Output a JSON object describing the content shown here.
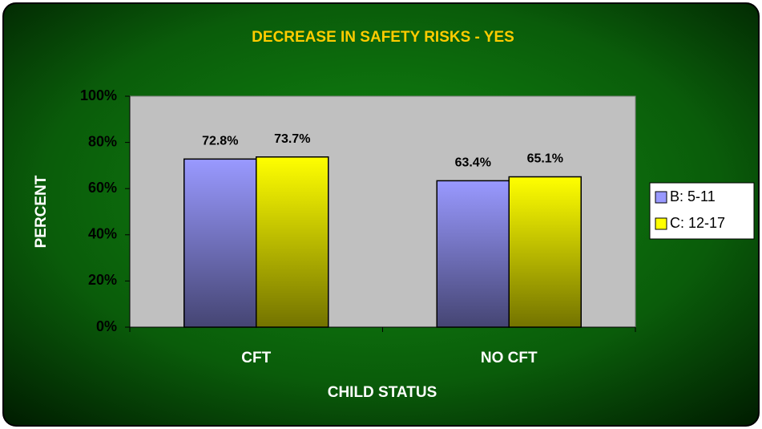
{
  "chart_data": {
    "type": "bar",
    "title": "DECREASE IN SAFETY RISKS - YES",
    "x_label": "CHILD STATUS",
    "y_label": "PERCENT",
    "categories": [
      "CFT",
      "NO CFT"
    ],
    "series": [
      {
        "name": "B: 5-11",
        "color": "#9999ff",
        "values": [
          72.8,
          63.4
        ],
        "value_labels": [
          "72.8%",
          "63.4%"
        ]
      },
      {
        "name": "C: 12-17",
        "color": "#ffff00",
        "values": [
          73.7,
          65.1
        ],
        "value_labels": [
          "73.7%",
          "65.1%"
        ]
      }
    ],
    "ylim": [
      0,
      100
    ],
    "yticks": [
      {
        "value": 0,
        "label": "0%"
      },
      {
        "value": 20,
        "label": "20%"
      },
      {
        "value": 40,
        "label": "40%"
      },
      {
        "value": 60,
        "label": "60%"
      },
      {
        "value": 80,
        "label": "80%"
      },
      {
        "value": 100,
        "label": "100%"
      }
    ],
    "legend": "right"
  }
}
